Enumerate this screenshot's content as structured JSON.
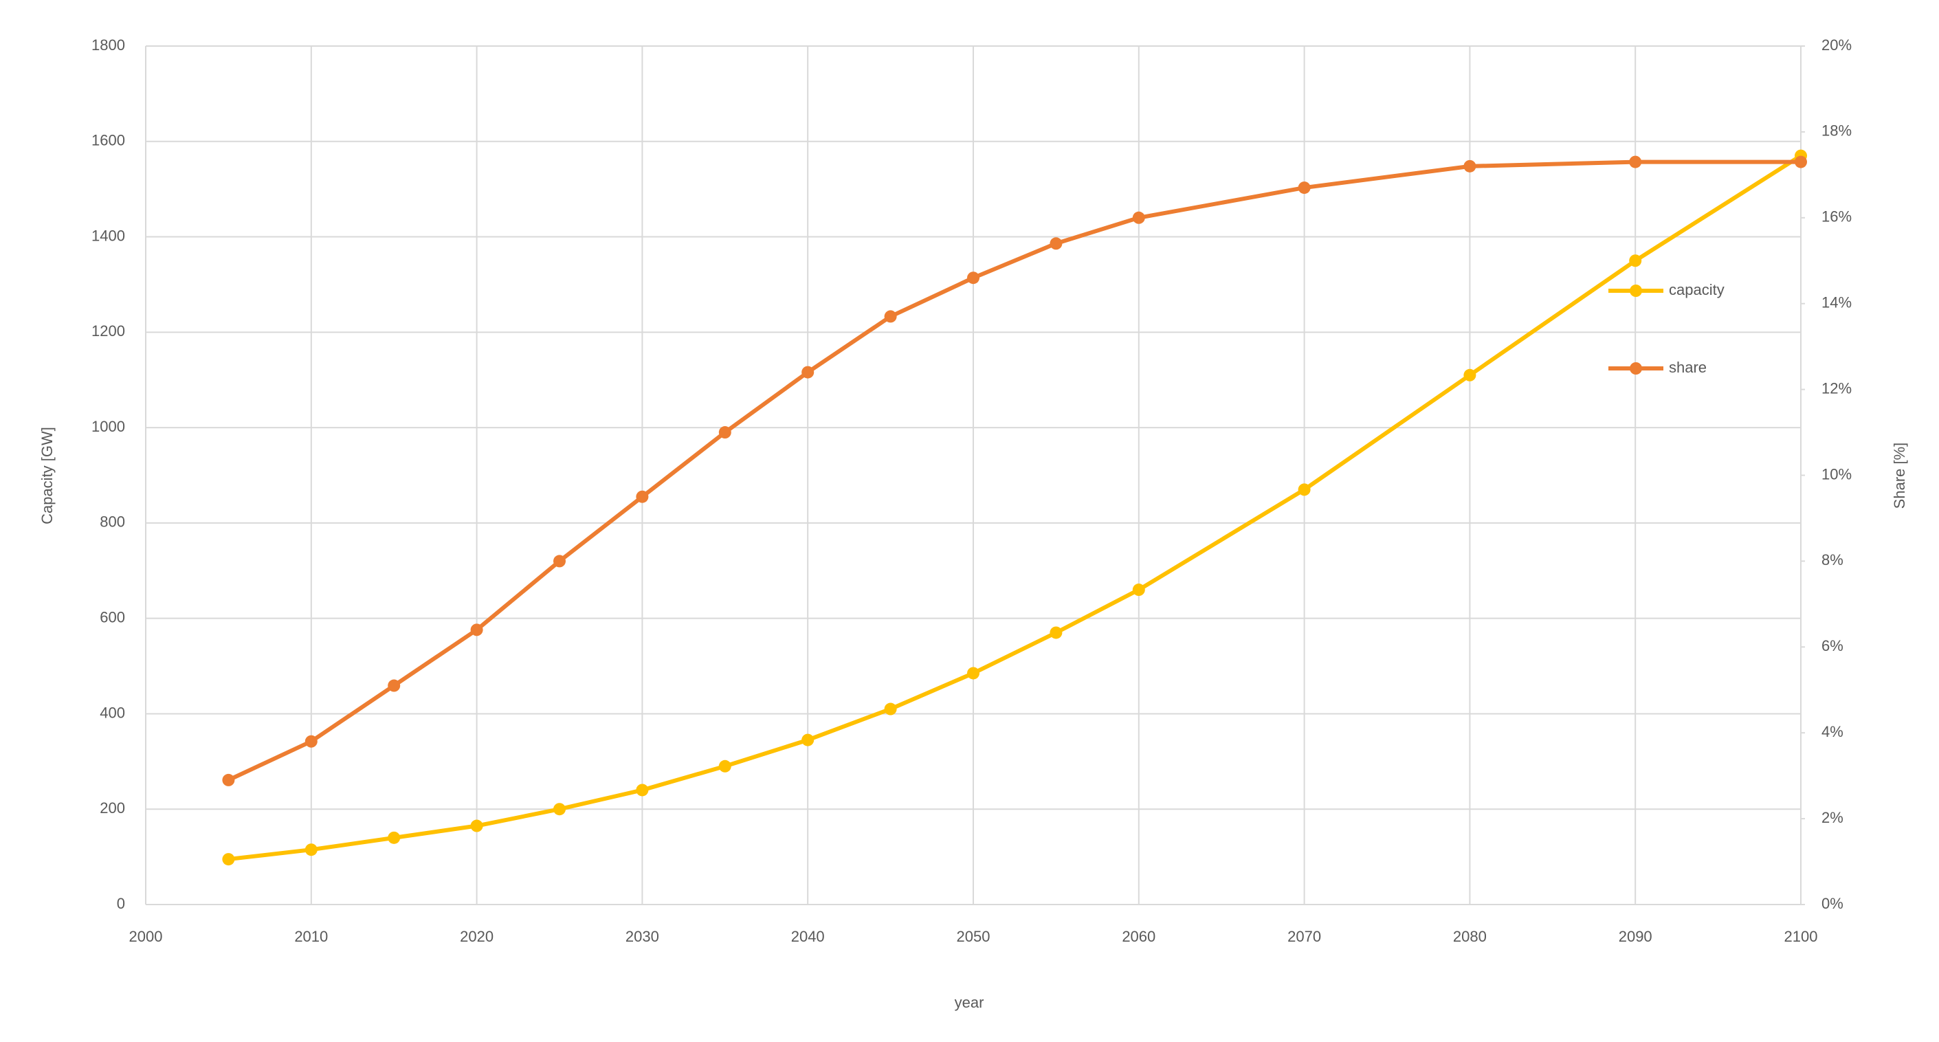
{
  "chart_data": {
    "type": "line",
    "x_label": "year",
    "y_label": "Capacity [GW]",
    "y2_label": "Share [%]",
    "x": [
      2005,
      2010,
      2015,
      2020,
      2025,
      2030,
      2035,
      2040,
      2045,
      2050,
      2055,
      2060,
      2070,
      2080,
      2090,
      2100
    ],
    "series": [
      {
        "name": "capacity",
        "color": "#ffc000",
        "values": [
          95,
          115,
          140,
          165,
          200,
          240,
          290,
          345,
          410,
          485,
          570,
          660,
          870,
          1110,
          1350,
          1570
        ]
      },
      {
        "name": "share",
        "color": "#ed7d31",
        "axis": "y2",
        "values": [
          2.9,
          3.8,
          5.1,
          6.4,
          8.0,
          9.5,
          11.0,
          12.4,
          13.7,
          14.6,
          15.4,
          16.0,
          16.7,
          17.2,
          17.3,
          17.3
        ]
      }
    ],
    "xlim": [
      2000,
      2100
    ],
    "xticks": [
      2000,
      2010,
      2020,
      2030,
      2040,
      2050,
      2060,
      2070,
      2080,
      2090,
      2100
    ],
    "ylim": [
      0,
      1800
    ],
    "yticks": [
      0,
      200,
      400,
      600,
      800,
      1000,
      1200,
      1400,
      1600,
      1800
    ],
    "y2lim": [
      0,
      20
    ],
    "y2ticks": [
      {
        "value": 0,
        "label": "0%"
      },
      {
        "value": 2,
        "label": "2%"
      },
      {
        "value": 4,
        "label": "4%"
      },
      {
        "value": 6,
        "label": "6%"
      },
      {
        "value": 8,
        "label": "8%"
      },
      {
        "value": 10,
        "label": "10%"
      },
      {
        "value": 12,
        "label": "12%"
      },
      {
        "value": 14,
        "label": "14%"
      },
      {
        "value": 16,
        "label": "16%"
      },
      {
        "value": 18,
        "label": "18%"
      },
      {
        "value": 20,
        "label": "20%"
      }
    ],
    "grid": true
  }
}
